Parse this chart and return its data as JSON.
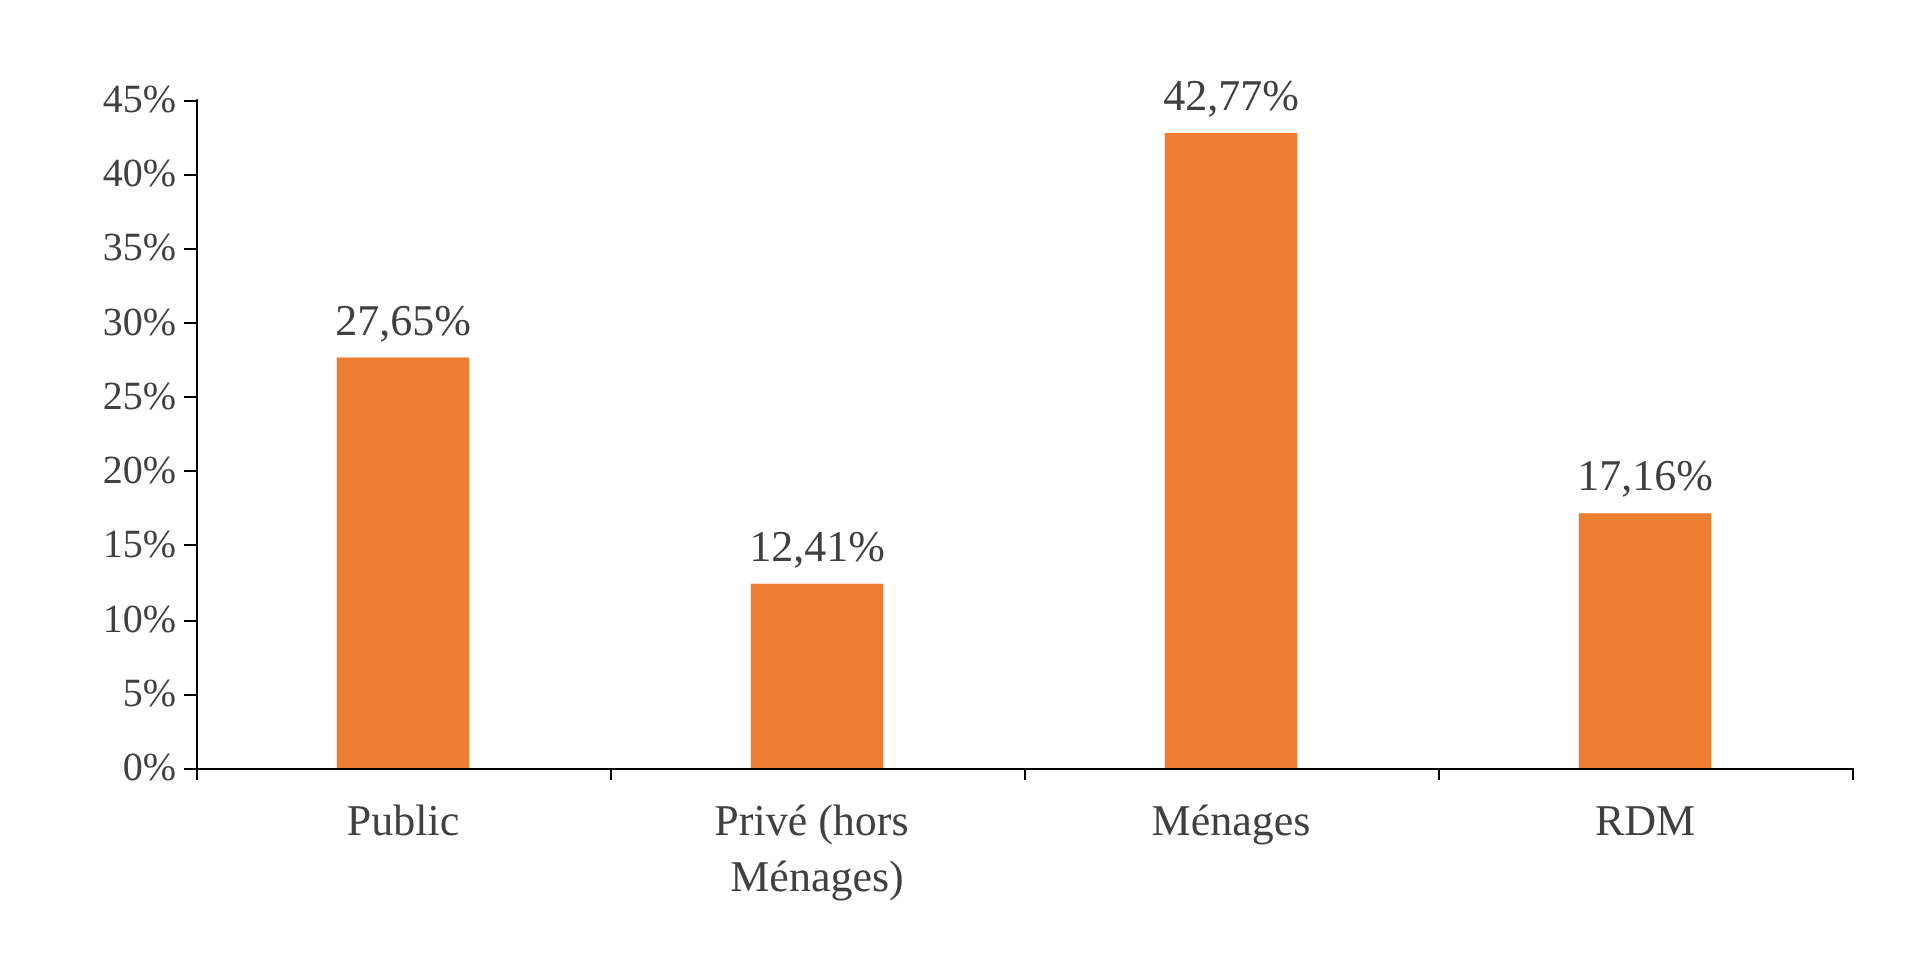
{
  "chart_data": {
    "type": "bar",
    "categories": [
      "Public",
      "Privé (hors Ménages)",
      "Ménages",
      "RDM"
    ],
    "values": [
      27.65,
      12.41,
      42.77,
      17.16
    ],
    "value_labels": [
      "27,65%",
      "12,41%",
      "42,77%",
      "17,16%"
    ],
    "color": "#ed7d31",
    "ylim": [
      0,
      45
    ],
    "yticks": [
      {
        "value": 0,
        "label": "0%"
      },
      {
        "value": 5,
        "label": "5%"
      },
      {
        "value": 10,
        "label": "10%"
      },
      {
        "value": 15,
        "label": "15%"
      },
      {
        "value": 20,
        "label": "20%"
      },
      {
        "value": 25,
        "label": "25%"
      },
      {
        "value": 30,
        "label": "30%"
      },
      {
        "value": 35,
        "label": "35%"
      },
      {
        "value": 40,
        "label": "40%"
      },
      {
        "value": 45,
        "label": "45%"
      }
    ],
    "grid": false
  }
}
